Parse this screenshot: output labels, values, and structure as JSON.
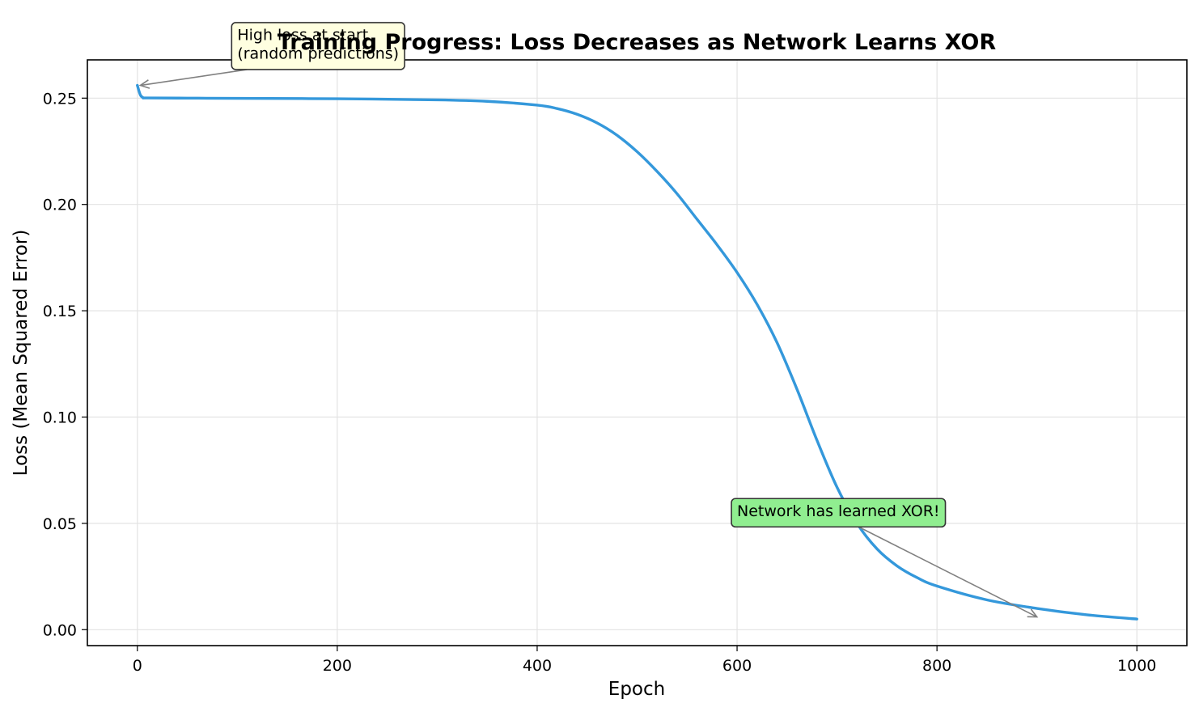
{
  "chart_data": {
    "type": "line",
    "title": "Training Progress: Loss Decreases as Network Learns XOR",
    "xlabel": "Epoch",
    "ylabel": "Loss (Mean Squared Error)",
    "xlim": [
      -50,
      1050
    ],
    "ylim": [
      -0.0075,
      0.268
    ],
    "xticks": [
      0,
      200,
      400,
      600,
      800,
      1000
    ],
    "xtick_labels": [
      "0",
      "200",
      "400",
      "600",
      "800",
      "1000"
    ],
    "yticks": [
      0.0,
      0.05,
      0.1,
      0.15,
      0.2,
      0.25
    ],
    "ytick_labels": [
      "0.00",
      "0.05",
      "0.10",
      "0.15",
      "0.20",
      "0.25"
    ],
    "grid": true,
    "series": [
      {
        "color": "#3498db",
        "x": [
          0,
          3,
          6,
          10,
          50,
          100,
          200,
          300,
          350,
          400,
          420,
          440,
          460,
          480,
          500,
          520,
          540,
          560,
          580,
          600,
          620,
          640,
          660,
          680,
          700,
          720,
          740,
          760,
          780,
          800,
          850,
          900,
          950,
          1000
        ],
        "y": [
          0.256,
          0.2515,
          0.2502,
          0.2501,
          0.25,
          0.2499,
          0.2497,
          0.2492,
          0.2485,
          0.2467,
          0.2451,
          0.2424,
          0.2383,
          0.2325,
          0.2248,
          0.2155,
          0.205,
          0.193,
          0.181,
          0.168,
          0.153,
          0.135,
          0.113,
          0.089,
          0.067,
          0.05,
          0.038,
          0.03,
          0.0245,
          0.0205,
          0.014,
          0.01,
          0.007,
          0.005
        ]
      }
    ],
    "annotations": [
      {
        "lines": [
          "High loss at start",
          "(random predictions)"
        ],
        "xy": [
          3,
          0.256
        ],
        "xytext": [
          100,
          0.2745
        ],
        "box_color": "#ffffe0"
      },
      {
        "lines": [
          "Network has learned XOR!"
        ],
        "xy": [
          900,
          0.006
        ],
        "xytext": [
          600,
          0.055
        ],
        "box_color": "#90ee90"
      }
    ]
  }
}
